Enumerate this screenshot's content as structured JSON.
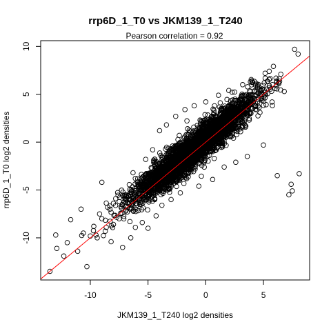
{
  "chart_data": {
    "type": "scatter",
    "title": "rrp6D_1_T0 vs JKM139_1_T240",
    "subtitle": "Pearson correlation =  0.92",
    "xlabel": "JKM139_1_T240 log2 densities",
    "ylabel": "rrp6D_1_T0 log2 densities",
    "xlim": [
      -14.3,
      9.0
    ],
    "ylim": [
      -14.4,
      10.6
    ],
    "xticks": [
      -10,
      -5,
      0,
      5
    ],
    "yticks": [
      -10,
      -5,
      0,
      5,
      10
    ],
    "grid": false,
    "legend": "none",
    "fit_line": {
      "slope": 1.0,
      "intercept": 0.0,
      "color": "#ff0000"
    },
    "point_style": {
      "shape": "open-circle",
      "color": "#000000"
    },
    "trend": {
      "slope": 0.97,
      "intercept": 0.3,
      "spread": 0.9,
      "x_mean": -1.0,
      "x_sd": 2.6,
      "n_bulk": 3500
    },
    "points": [
      {
        "x": -13.5,
        "y": -13.5
      },
      {
        "x": -13.0,
        "y": -9.7
      },
      {
        "x": -12.9,
        "y": -11.1
      },
      {
        "x": -12.3,
        "y": -11.9
      },
      {
        "x": -12.0,
        "y": -10.5
      },
      {
        "x": -11.7,
        "y": -8.1
      },
      {
        "x": -11.1,
        "y": -11.4
      },
      {
        "x": -10.8,
        "y": -7.0
      },
      {
        "x": -10.6,
        "y": -9.5
      },
      {
        "x": -10.3,
        "y": -13.0
      },
      {
        "x": -10.0,
        "y": -9.8
      },
      {
        "x": -9.7,
        "y": -8.8
      },
      {
        "x": -9.4,
        "y": -10.0
      },
      {
        "x": -9.2,
        "y": -7.5
      },
      {
        "x": -9.0,
        "y": -4.2
      },
      {
        "x": -8.7,
        "y": -9.3
      },
      {
        "x": -8.5,
        "y": -6.8
      },
      {
        "x": -8.2,
        "y": -10.4
      },
      {
        "x": -8.0,
        "y": -8.6
      },
      {
        "x": -7.8,
        "y": -5.9
      },
      {
        "x": -7.5,
        "y": -8.0
      },
      {
        "x": -7.2,
        "y": -11.0
      },
      {
        "x": -7.0,
        "y": -5.5
      },
      {
        "x": -6.8,
        "y": -7.3
      },
      {
        "x": -6.5,
        "y": -10.0
      },
      {
        "x": -6.3,
        "y": -3.2
      },
      {
        "x": -6.1,
        "y": -8.9
      },
      {
        "x": -5.8,
        "y": -4.6
      },
      {
        "x": -5.5,
        "y": -8.4
      },
      {
        "x": -5.2,
        "y": -1.8
      },
      {
        "x": -5.0,
        "y": -9.0
      },
      {
        "x": -4.6,
        "y": -0.8
      },
      {
        "x": -4.3,
        "y": -7.7
      },
      {
        "x": -4.0,
        "y": 1.2
      },
      {
        "x": -3.8,
        "y": -6.6
      },
      {
        "x": -3.4,
        "y": 1.8
      },
      {
        "x": -3.0,
        "y": -6.0
      },
      {
        "x": -2.6,
        "y": 2.7
      },
      {
        "x": -2.2,
        "y": -5.3
      },
      {
        "x": -1.8,
        "y": 3.4
      },
      {
        "x": -1.0,
        "y": 3.8
      },
      {
        "x": -0.6,
        "y": -4.6
      },
      {
        "x": 0.0,
        "y": 4.2
      },
      {
        "x": 0.6,
        "y": -3.9
      },
      {
        "x": 1.1,
        "y": 4.9
      },
      {
        "x": 1.6,
        "y": -2.6
      },
      {
        "x": 2.0,
        "y": 5.4
      },
      {
        "x": 2.6,
        "y": -2.1
      },
      {
        "x": 3.2,
        "y": 6.0
      },
      {
        "x": 3.6,
        "y": -1.5
      },
      {
        "x": 4.0,
        "y": 6.4
      },
      {
        "x": 4.7,
        "y": 3.1
      },
      {
        "x": 5.0,
        "y": -0.3
      },
      {
        "x": 5.5,
        "y": 7.4
      },
      {
        "x": 6.0,
        "y": 5.6
      },
      {
        "x": 6.2,
        "y": -3.5
      },
      {
        "x": 6.5,
        "y": 7.1
      },
      {
        "x": 6.8,
        "y": 5.3
      },
      {
        "x": 7.2,
        "y": -5.5
      },
      {
        "x": 7.4,
        "y": -4.4
      },
      {
        "x": 7.5,
        "y": -5.1
      },
      {
        "x": 7.7,
        "y": 9.7
      },
      {
        "x": 8.0,
        "y": 9.2
      },
      {
        "x": 8.1,
        "y": -3.3
      }
    ]
  }
}
